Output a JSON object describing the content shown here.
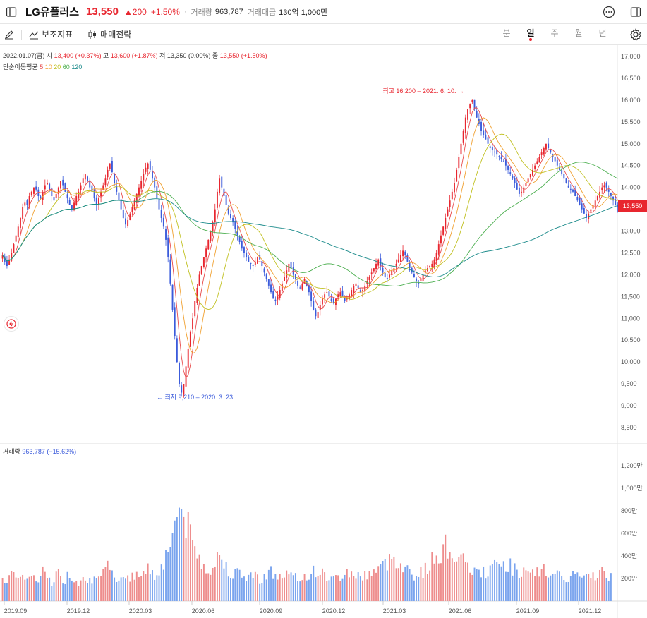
{
  "header": {
    "stock_name": "LG유플러스",
    "price": "13,550",
    "change": "▲200",
    "change_pct": "+1.50%",
    "separator": "·",
    "volume_label": "거래량",
    "volume_value": "963,787",
    "amount_label": "거래대금",
    "amount_value": "130억 1,000만"
  },
  "toolbar": {
    "indicator_label": "보조지표",
    "strategy_label": "매매전략",
    "periods": [
      "분",
      "일",
      "주",
      "월",
      "년"
    ],
    "active_period": "일"
  },
  "info": {
    "date": "2022.01.07(금)",
    "open_label": "시",
    "open": "13,400 (+0.37%)",
    "high_label": "고",
    "high": "13,600 (+1.87%)",
    "low_label": "저",
    "low": "13,350 (0.00%)",
    "close_label": "종",
    "close": "13,550 (+1.50%)",
    "ma_label": "단순이동평균",
    "ma_periods": [
      "5",
      "10",
      "20",
      "60",
      "120"
    ]
  },
  "volume_info": {
    "label": "거래량",
    "value": "963,787 (−15.62%)"
  },
  "colors": {
    "up": "#e8262f",
    "down": "#3b5bdb",
    "vol_up": "#ee8d8d",
    "vol_down": "#7aa4ee",
    "ma5": "#e84a4a",
    "ma10": "#f0a030",
    "ma20": "#c0c020",
    "ma60": "#4caf50",
    "ma120": "#1a8a8a"
  },
  "chart_data": {
    "type": "candlestick",
    "current_price": 13550,
    "current_price_label": "13,550",
    "price_axis": [
      {
        "v": 17000,
        "label": "17,000"
      },
      {
        "v": 16500,
        "label": "16,500"
      },
      {
        "v": 16000,
        "label": "16,000"
      },
      {
        "v": 15500,
        "label": "15,500"
      },
      {
        "v": 15000,
        "label": "15,000"
      },
      {
        "v": 14500,
        "label": "14,500"
      },
      {
        "v": 14000,
        "label": "14,000"
      },
      {
        "v": 13500,
        "label": "13,500"
      },
      {
        "v": 13000,
        "label": "13,000"
      },
      {
        "v": 12500,
        "label": "12,500"
      },
      {
        "v": 12000,
        "label": "12,000"
      },
      {
        "v": 11500,
        "label": "11,500"
      },
      {
        "v": 11000,
        "label": "11,000"
      },
      {
        "v": 10500,
        "label": "10,500"
      },
      {
        "v": 10000,
        "label": "10,000"
      },
      {
        "v": 9500,
        "label": "9,500"
      },
      {
        "v": 9000,
        "label": "9,000"
      },
      {
        "v": 8500,
        "label": "8,500"
      }
    ],
    "volume_axis": [
      {
        "v": 1200000,
        "label": "1,200만"
      },
      {
        "v": 1000000,
        "label": "1,000만"
      },
      {
        "v": 800000,
        "label": "800만"
      },
      {
        "v": 600000,
        "label": "600만"
      },
      {
        "v": 400000,
        "label": "400만"
      },
      {
        "v": 200000,
        "label": "200만"
      }
    ],
    "x_labels": [
      "2019.09",
      "2019.12",
      "2020.03",
      "2020.06",
      "2020.09",
      "2020.12",
      "2021.03",
      "2021.06",
      "2021.09",
      "2021.12"
    ],
    "annotations": {
      "max": "최고 16,200 – 2021. 6. 10.",
      "min": "최저 9,210 – 2020. 3. 23."
    },
    "close_series": [
      12450,
      12300,
      12200,
      12350,
      12500,
      12700,
      12900,
      13100,
      13300,
      13550,
      13650,
      13600,
      13800,
      13900,
      14000,
      13950,
      13800,
      13750,
      13900,
      14050,
      14100,
      13950,
      13800,
      13700,
      13850,
      14000,
      14150,
      14050,
      13900,
      13750,
      13600,
      13500,
      13650,
      13800,
      13900,
      14050,
      14200,
      14300,
      14150,
      14000,
      13900,
      13750,
      13600,
      13750,
      13900,
      14050,
      14200,
      14400,
      14550,
      14350,
      14100,
      13900,
      13700,
      13500,
      13300,
      13150,
      13250,
      13400,
      13550,
      13700,
      13850,
      14000,
      14150,
      14300,
      14450,
      14550,
      14400,
      14200,
      14000,
      13750,
      13500,
      13300,
      13100,
      12800,
      12400,
      11800,
      11200,
      10600,
      10000,
      9500,
      9300,
      9500,
      9900,
      10300,
      10700,
      11000,
      11400,
      11700,
      12000,
      12200,
      12400,
      12600,
      12800,
      13000,
      13200,
      13500,
      13900,
      14200,
      14000,
      13800,
      13600,
      13400,
      13300,
      13200,
      13050,
      12900,
      12750,
      12600,
      12500,
      12400,
      12300,
      12250,
      12200,
      12300,
      12400,
      12350,
      12200,
      12050,
      11900,
      11750,
      11600,
      11450,
      11400,
      11500,
      11650,
      11800,
      11950,
      12100,
      12250,
      12150,
      12000,
      11900,
      11750,
      11700,
      11800,
      11900,
      11750,
      11600,
      11400,
      11200,
      11050,
      11150,
      11300,
      11450,
      11550,
      11600,
      11500,
      11400,
      11350,
      11450,
      11550,
      11600,
      11500,
      11400,
      11450,
      11550,
      11650,
      11750,
      11800,
      11700,
      11600,
      11650,
      11750,
      11850,
      11950,
      12050,
      12150,
      12250,
      12350,
      12200,
      12050,
      11950,
      11900,
      12000,
      12100,
      12150,
      12250,
      12350,
      12450,
      12550,
      12450,
      12300,
      12150,
      12050,
      11950,
      11850,
      11800,
      11900,
      12000,
      12100,
      12150,
      12200,
      12250,
      12350,
      12500,
      12700,
      12900,
      13100,
      13300,
      13500,
      13700,
      13900,
      14100,
      14400,
      14700,
      15000,
      15300,
      15600,
      15800,
      15900,
      16000,
      15800,
      15600,
      15450,
      15300,
      15200,
      15100,
      15000,
      14900,
      14850,
      14800,
      14750,
      14700,
      14650,
      14600,
      14500,
      14400,
      14300,
      14200,
      14100,
      13950,
      13850,
      13900,
      14000,
      14100,
      14200,
      14300,
      14400,
      14500,
      14600,
      14700,
      14800,
      14900,
      15000,
      14900,
      14800,
      14700,
      14600,
      14500,
      14400,
      14300,
      14200,
      14100,
      14000,
      13950,
      13900,
      13800,
      13700,
      13600,
      13500,
      13400,
      13300,
      13400,
      13500,
      13600,
      13700,
      13800,
      13900,
      14000,
      14050,
      14000,
      13900,
      13800,
      13700,
      13600,
      13550
    ],
    "vol_series": [
      250000,
      200000,
      180000,
      230000,
      260000,
      210000,
      170000,
      190000,
      220000,
      280000,
      240000,
      200000,
      190000,
      230000,
      210000,
      180000,
      170000,
      200000,
      260000,
      230000,
      220000,
      190000,
      180000,
      210000,
      250000,
      240000,
      200000,
      180000,
      190000,
      220000,
      230000,
      210000,
      200000,
      190000,
      180000,
      200000,
      240000,
      230000,
      210000,
      200000,
      190000,
      180000,
      170000,
      190000,
      210000,
      230000,
      270000,
      300000,
      280000,
      250000,
      230000,
      220000,
      210000,
      200000,
      230000,
      250000,
      240000,
      220000,
      210000,
      200000,
      220000,
      230000,
      260000,
      280000,
      300000,
      320000,
      260000,
      240000,
      230000,
      250000,
      280000,
      320000,
      350000,
      400000,
      450000,
      550000,
      650000,
      700000,
      750000,
      800000,
      820000,
      760000,
      700000,
      640000,
      580000,
      520000,
      460000,
      420000,
      380000,
      350000,
      330000,
      310000,
      300000,
      290000,
      300000,
      330000,
      380000,
      420000,
      380000,
      340000,
      310000,
      290000,
      270000,
      260000,
      250000,
      240000,
      230000,
      220000,
      210000,
      220000,
      230000,
      240000,
      230000,
      220000,
      210000,
      200000,
      210000,
      230000,
      240000,
      250000,
      260000,
      240000,
      230000,
      220000,
      210000,
      220000,
      230000,
      240000,
      230000,
      220000,
      210000,
      200000,
      190000,
      200000,
      210000,
      220000,
      230000,
      240000,
      250000,
      260000,
      270000,
      260000,
      250000,
      240000,
      230000,
      220000,
      210000,
      200000,
      190000,
      200000,
      210000,
      220000,
      230000,
      240000,
      250000,
      260000,
      250000,
      240000,
      230000,
      220000,
      210000,
      220000,
      230000,
      240000,
      250000,
      260000,
      270000,
      280000,
      290000,
      300000,
      310000,
      320000,
      340000,
      360000,
      380000,
      400000,
      380000,
      360000,
      340000,
      320000,
      300000,
      280000,
      260000,
      250000,
      240000,
      230000,
      240000,
      250000,
      260000,
      280000,
      300000,
      320000,
      350000,
      380000,
      400000,
      420000,
      440000,
      460000,
      480000,
      470000,
      460000,
      440000,
      420000,
      400000,
      380000,
      360000,
      340000,
      320000,
      300000,
      290000,
      280000,
      270000,
      260000,
      250000,
      240000,
      250000,
      260000,
      270000,
      280000,
      290000,
      300000,
      310000,
      320000,
      330000,
      340000,
      330000,
      320000,
      310000,
      300000,
      290000,
      280000,
      270000,
      260000,
      250000,
      240000,
      230000,
      220000,
      230000,
      240000,
      250000,
      260000,
      270000,
      280000,
      270000,
      260000,
      250000,
      240000,
      230000,
      220000,
      210000,
      200000,
      190000,
      200000,
      210000,
      220000,
      230000,
      240000,
      230000,
      220000,
      210000,
      200000,
      200000,
      210000,
      220000,
      230000,
      240000,
      250000,
      260000,
      250000,
      240000,
      230000,
      220000,
      210000
    ]
  }
}
